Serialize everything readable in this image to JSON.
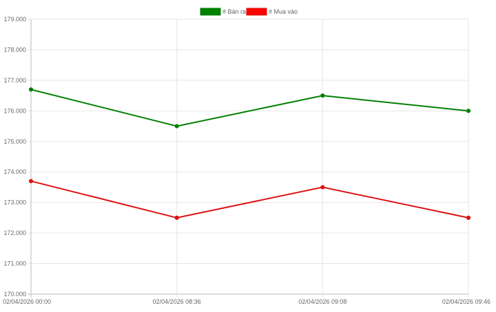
{
  "chart_data": {
    "type": "line",
    "x": [
      "02/04/2026 00:00",
      "02/04/2026 08:36",
      "02/04/2026 09:08",
      "02/04/2026 09:46"
    ],
    "series": [
      {
        "name": "# Bán ra",
        "color": "#008000",
        "values": [
          176700,
          175500,
          176500,
          176000
        ]
      },
      {
        "name": "# Mua vào",
        "color": "#ff0000",
        "line_color": "#dd1111",
        "values": [
          173700,
          172500,
          173500,
          172500
        ]
      }
    ],
    "ylim": [
      170000,
      179000
    ],
    "y_ticks": [
      "170.000",
      "171.000",
      "172.000",
      "173.000",
      "174.000",
      "175.000",
      "176.000",
      "177.000",
      "178.000",
      "179.000"
    ],
    "grid": true,
    "legend_position": "top-center"
  }
}
